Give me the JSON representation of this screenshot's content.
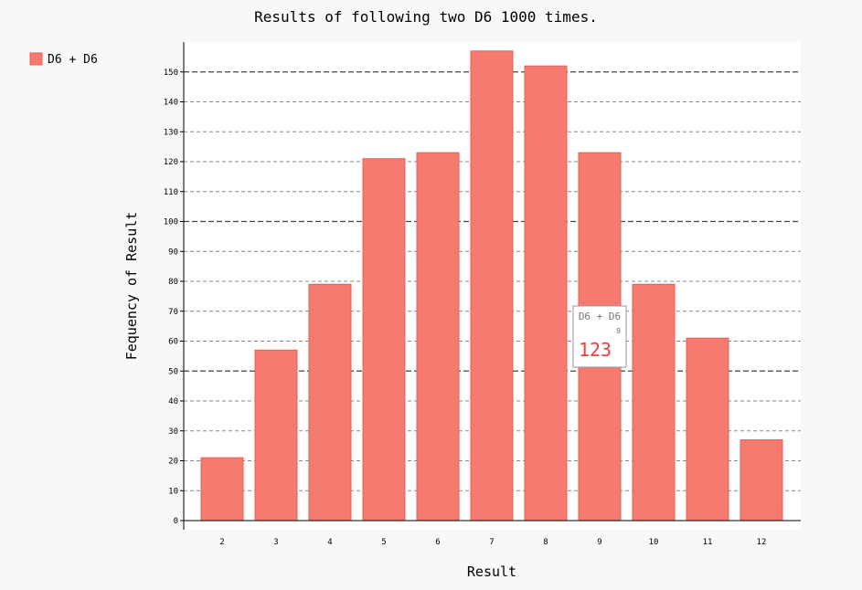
{
  "chart_data": {
    "type": "bar",
    "title": "Results of following two D6 1000 times.",
    "xlabel": "Result",
    "ylabel": "Fequency of Result",
    "categories": [
      "2",
      "3",
      "4",
      "5",
      "6",
      "7",
      "8",
      "9",
      "10",
      "11",
      "12"
    ],
    "series": [
      {
        "name": "D6 + D6",
        "values": [
          21,
          57,
          79,
          121,
          123,
          157,
          152,
          123,
          79,
          61,
          27
        ],
        "color": "#f57a6f"
      }
    ],
    "ylim": [
      0,
      160
    ],
    "yticks": [
      0,
      10,
      20,
      30,
      40,
      50,
      60,
      70,
      80,
      90,
      100,
      110,
      120,
      130,
      140,
      150
    ],
    "major_yticks": [
      0,
      50,
      100,
      150
    ],
    "grid": true,
    "legend_position": "top-left",
    "tooltip": {
      "series": "D6 + D6",
      "category": "9",
      "value": "123"
    }
  }
}
